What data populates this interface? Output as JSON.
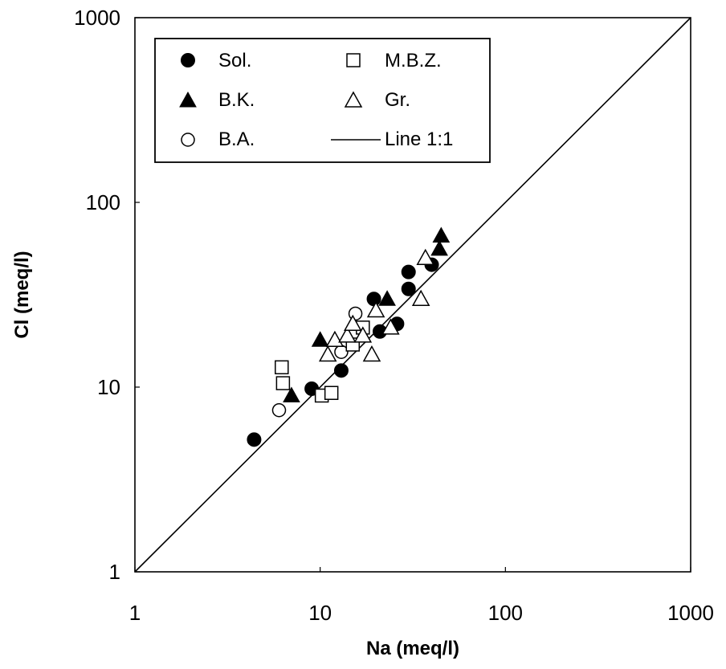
{
  "chart_data": {
    "type": "scatter",
    "xlabel": "Na (meq/l)",
    "ylabel": "Cl (meq/l)",
    "xscale": "log",
    "yscale": "log",
    "xlim": [
      1,
      1000
    ],
    "ylim": [
      1,
      1000
    ],
    "x_ticks": [
      "1",
      "10",
      "100",
      "1000"
    ],
    "y_ticks": [
      "1",
      "10",
      "100",
      "1000"
    ],
    "grid": false,
    "legend_position": "top-left",
    "series": [
      {
        "name": "Sol.",
        "marker": "filled-circle",
        "x": [
          4.4,
          9,
          13,
          19.5,
          21,
          26,
          30,
          30,
          40
        ],
        "y": [
          5.2,
          9.8,
          12.3,
          30,
          20,
          22,
          42,
          34,
          46
        ]
      },
      {
        "name": "B.K.",
        "marker": "filled-triangle",
        "x": [
          7,
          10,
          23,
          44,
          45
        ],
        "y": [
          9,
          18,
          30,
          56,
          66
        ]
      },
      {
        "name": "B.A.",
        "marker": "open-circle",
        "x": [
          6,
          13,
          15.5
        ],
        "y": [
          7.5,
          15.5,
          25
        ]
      },
      {
        "name": "M.B.Z.",
        "marker": "open-square",
        "x": [
          6.2,
          6.3,
          10.2,
          11.5,
          15,
          17
        ],
        "y": [
          12.8,
          10.5,
          9,
          9.3,
          17,
          21
        ]
      },
      {
        "name": "Gr.",
        "marker": "open-triangle",
        "x": [
          11,
          12,
          14,
          15,
          17,
          19,
          20,
          24,
          35,
          37
        ],
        "y": [
          15,
          18,
          19,
          22,
          19,
          15,
          26,
          21,
          30,
          50
        ]
      },
      {
        "name": "Line 1:1",
        "marker": "line",
        "x": [
          1,
          1000
        ],
        "y": [
          1,
          1000
        ]
      }
    ]
  }
}
